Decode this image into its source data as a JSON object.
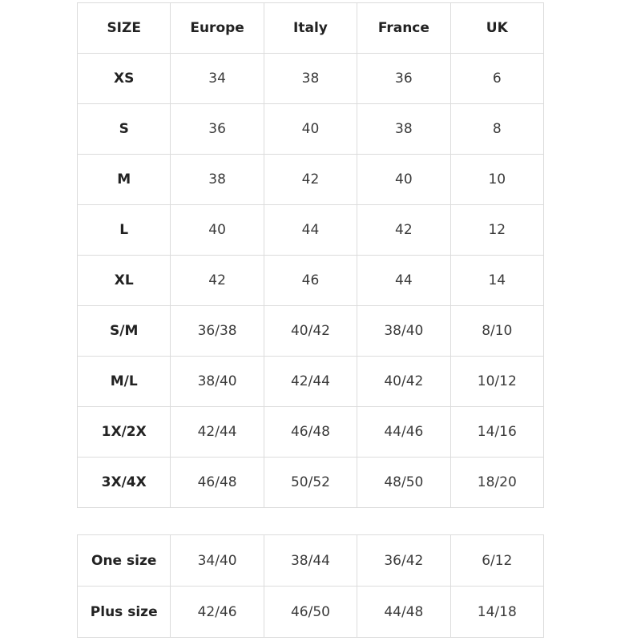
{
  "tables": [
    {
      "header": [
        "SIZE",
        "Europe",
        "Italy",
        "France",
        "UK"
      ],
      "rows": [
        [
          "XS",
          "34",
          "38",
          "36",
          "6"
        ],
        [
          "S",
          "36",
          "40",
          "38",
          "8"
        ],
        [
          "M",
          "38",
          "42",
          "40",
          "10"
        ],
        [
          "L",
          "40",
          "44",
          "42",
          "12"
        ],
        [
          "XL",
          "42",
          "46",
          "44",
          "14"
        ],
        [
          "S/M",
          "36/38",
          "40/42",
          "38/40",
          "8/10"
        ],
        [
          "M/L",
          "38/40",
          "42/44",
          "40/42",
          "10/12"
        ],
        [
          "1X/2X",
          "42/44",
          "46/48",
          "44/46",
          "14/16"
        ],
        [
          "3X/4X",
          "46/48",
          "50/52",
          "48/50",
          "18/20"
        ]
      ]
    },
    {
      "rows": [
        [
          "One size",
          "34/40",
          "38/44",
          "36/42",
          "6/12"
        ],
        [
          "Plus size",
          "42/46",
          "46/50",
          "44/48",
          "14/18"
        ]
      ]
    }
  ]
}
